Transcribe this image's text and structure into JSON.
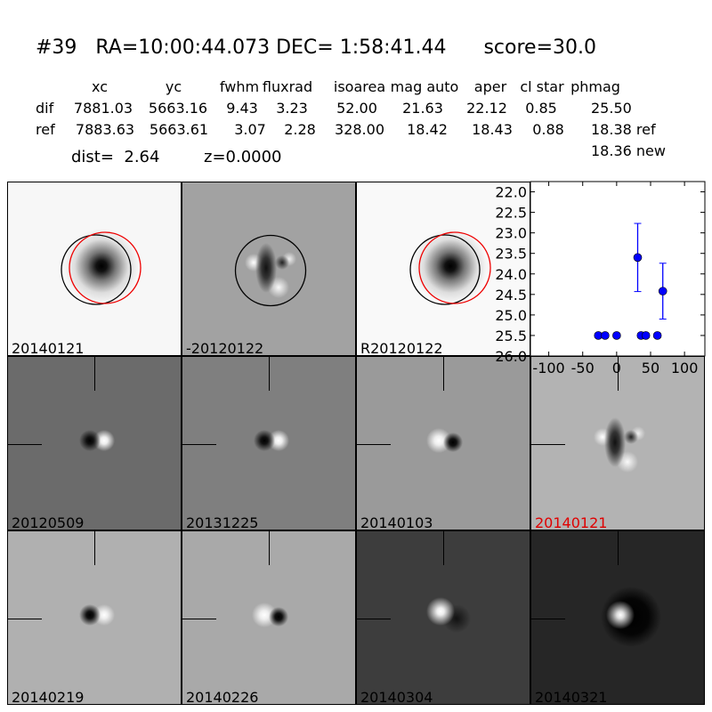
{
  "header": {
    "title": "#39   RA=10:00:44.073 DEC= 1:58:41.44      score=30.0",
    "columns": [
      "xc",
      "yc",
      "fwhm",
      "fluxrad",
      "isoarea",
      "mag auto",
      "aper",
      "cl star",
      "phmag"
    ],
    "rows": [
      {
        "label": "dif",
        "values": [
          "7881.03",
          "5663.16",
          "9.43",
          "3.23",
          "52.00",
          "21.63",
          "22.12",
          "0.85"
        ],
        "phmag": "25.50"
      },
      {
        "label": "ref",
        "values": [
          "7883.63",
          "5663.61",
          "3.07",
          "2.28",
          "328.00",
          "18.42",
          "18.43",
          "0.88"
        ],
        "phmag": "18.38 ref"
      }
    ],
    "phmag_new": "18.36 new",
    "dist": "dist=  2.64",
    "z": "z=0.0000"
  },
  "panels": [
    {
      "label": "20140121",
      "bg": "#f7f7f7",
      "kind": "star"
    },
    {
      "label": "-20120122",
      "bg": "#a2a2a2",
      "kind": "diff"
    },
    {
      "label": "R20120122",
      "bg": "#f9f9f9",
      "kind": "star"
    },
    null,
    {
      "label": "20120509",
      "bg": "#6b6b6b",
      "kind": "dipole"
    },
    {
      "label": "20131225",
      "bg": "#7f7f7f",
      "kind": "dipole"
    },
    {
      "label": "20140103",
      "bg": "#9a9a9a",
      "kind": "dipole-rev"
    },
    {
      "label": "20140121",
      "bg": "#b3b3b3",
      "kind": "diff",
      "highlight": "#e00000"
    },
    {
      "label": "20140219",
      "bg": "#b0b0b0",
      "kind": "dipole"
    },
    {
      "label": "20140226",
      "bg": "#a9a9a9",
      "kind": "dipole-rev"
    },
    {
      "label": "20140304",
      "bg": "#3d3d3d",
      "kind": "blob"
    },
    {
      "label": "20140321",
      "bg": "#262626",
      "kind": "blob-halo"
    }
  ],
  "chart_data": {
    "type": "scatter",
    "xlim": [
      -127,
      130
    ],
    "ylim": [
      26.0,
      21.75
    ],
    "y_inverted": true,
    "xticks": [
      "-100",
      "-50",
      "0",
      "50",
      "100"
    ],
    "xtick_values": [
      -100,
      -50,
      0,
      50,
      100
    ],
    "yticks": [
      "22.0",
      "22.5",
      "23.0",
      "23.5",
      "24.0",
      "24.5",
      "25.0",
      "25.5",
      "26.0"
    ],
    "ytick_values": [
      22.0,
      22.5,
      23.0,
      23.5,
      24.0,
      24.5,
      25.0,
      25.5,
      26.0
    ],
    "color": "#0000ff",
    "points": [
      {
        "x": -27,
        "y": 25.5,
        "err": 0.05
      },
      {
        "x": -17,
        "y": 25.5,
        "err": 0.05
      },
      {
        "x": 0,
        "y": 25.5,
        "err": 0.05
      },
      {
        "x": 36,
        "y": 25.5,
        "err": 0.05
      },
      {
        "x": 43,
        "y": 25.5,
        "err": 0.05
      },
      {
        "x": 60,
        "y": 25.5,
        "err": 0.05
      },
      {
        "x": 31,
        "y": 23.6,
        "err": 0.83
      },
      {
        "x": 68,
        "y": 24.42,
        "err": 0.68
      }
    ]
  }
}
